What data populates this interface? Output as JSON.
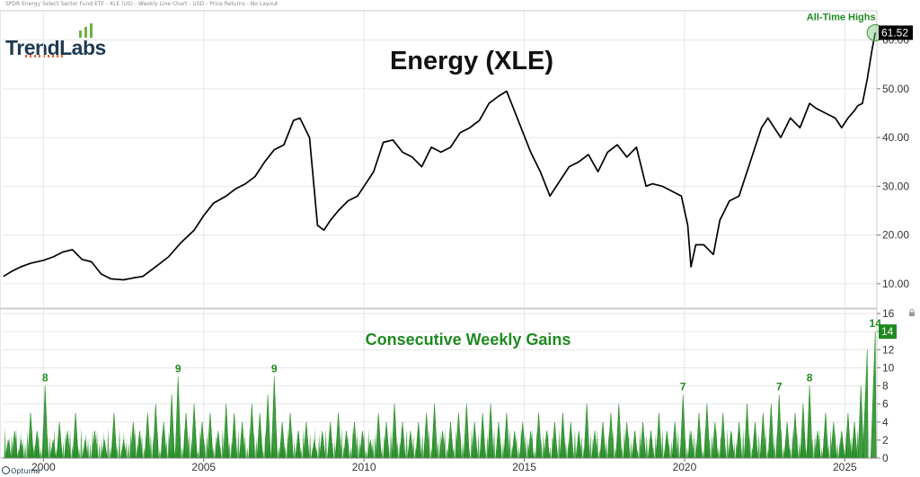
{
  "header": {
    "note": "SPDR Energy Select Sector Fund ETF - XLE (US) - Weekly Line Chart - USD - Price Returns - No Layout"
  },
  "logo": {
    "text": "TrendLabs",
    "icon": "bar-chart-icon",
    "accent_color": "#e8612c",
    "bar_color": "#6db33f"
  },
  "footer": {
    "brand": "Optuma"
  },
  "colors": {
    "price_line": "#000000",
    "gain_fill": "#1f8a1f",
    "gain_text": "#1f8a1f",
    "highlight_circle": "#7ec87e",
    "grid": "#e6e6e6"
  },
  "chart_data": [
    {
      "type": "line",
      "title": "Energy (XLE)",
      "xlabel": "",
      "ylabel": "",
      "xlim": [
        1998.7,
        2026.0
      ],
      "ylim": [
        5,
        66
      ],
      "x_ticks": [
        "2000",
        "2005",
        "2010",
        "2015",
        "2020",
        "2025"
      ],
      "x_tick_values": [
        2000,
        2005,
        2010,
        2015,
        2020,
        2025
      ],
      "y_ticks": [
        "10.00",
        "20.00",
        "30.00",
        "40.00",
        "50.00",
        "60.00"
      ],
      "y_tick_values": [
        10,
        20,
        30,
        40,
        50,
        60
      ],
      "grid": true,
      "series": [
        {
          "name": "",
          "x": [
            1998.75,
            1999.0,
            1999.3,
            1999.6,
            2000.0,
            2000.3,
            2000.6,
            2000.9,
            2001.2,
            2001.5,
            2001.8,
            2002.1,
            2002.5,
            2002.8,
            2003.1,
            2003.5,
            2003.9,
            2004.3,
            2004.7,
            2005.0,
            2005.3,
            2005.7,
            2006.0,
            2006.3,
            2006.6,
            2006.9,
            2007.2,
            2007.5,
            2007.8,
            2008.0,
            2008.3,
            2008.55,
            2008.75,
            2008.95,
            2009.2,
            2009.5,
            2009.8,
            2010.0,
            2010.3,
            2010.6,
            2010.9,
            2011.2,
            2011.5,
            2011.8,
            2012.1,
            2012.4,
            2012.7,
            2013.0,
            2013.3,
            2013.6,
            2013.9,
            2014.2,
            2014.45,
            2014.6,
            2014.9,
            2015.2,
            2015.5,
            2015.8,
            2016.1,
            2016.4,
            2016.7,
            2017.0,
            2017.3,
            2017.6,
            2017.9,
            2018.2,
            2018.5,
            2018.8,
            2019.0,
            2019.3,
            2019.6,
            2019.9,
            2020.1,
            2020.2,
            2020.35,
            2020.6,
            2020.9,
            2021.1,
            2021.4,
            2021.7,
            2022.0,
            2022.2,
            2022.4,
            2022.6,
            2022.8,
            2023.0,
            2023.3,
            2023.6,
            2023.9,
            2024.1,
            2024.4,
            2024.7,
            2024.9,
            2025.1,
            2025.3,
            2025.4,
            2025.55,
            2025.7,
            2025.85,
            2025.95
          ],
          "y": [
            11.5,
            12.5,
            13.5,
            14.2,
            14.8,
            15.5,
            16.5,
            17.0,
            15.0,
            14.5,
            12.0,
            11.0,
            10.8,
            11.2,
            11.5,
            13.5,
            15.5,
            18.5,
            21.0,
            24.0,
            26.5,
            28.0,
            29.5,
            30.5,
            32.0,
            35.0,
            37.5,
            38.5,
            43.5,
            44.0,
            40.0,
            22.0,
            21.0,
            23.0,
            25.0,
            27.0,
            28.0,
            30.0,
            33.0,
            39.0,
            39.5,
            37.0,
            36.0,
            34.0,
            38.0,
            37.0,
            38.0,
            41.0,
            42.0,
            43.5,
            47.0,
            48.5,
            49.5,
            47.0,
            42.0,
            37.0,
            33.0,
            28.0,
            31.0,
            34.0,
            35.0,
            36.5,
            33.0,
            37.0,
            38.5,
            36.0,
            38.0,
            30.0,
            30.5,
            30.0,
            29.0,
            28.0,
            22.0,
            13.5,
            18.0,
            18.0,
            16.0,
            23.0,
            27.0,
            28.0,
            34.0,
            38.0,
            42.0,
            44.0,
            42.0,
            40.0,
            44.0,
            42.0,
            47.0,
            46.0,
            45.0,
            44.0,
            42.0,
            44.0,
            45.5,
            46.5,
            47.0,
            52.0,
            58.0,
            61.5
          ]
        }
      ],
      "annotations": [
        {
          "text": "All-Time Highs",
          "x": 2025.95,
          "y": 61.52
        }
      ],
      "last_value_label": "61.52"
    },
    {
      "type": "area",
      "title": "Consecutive Weekly Gains",
      "xlabel": "",
      "ylabel": "",
      "xlim": [
        1998.7,
        2026.0
      ],
      "ylim": [
        0,
        16
      ],
      "y_ticks": [
        "0",
        "2",
        "4",
        "6",
        "8",
        "10",
        "12",
        "14",
        "16"
      ],
      "y_tick_values": [
        0,
        2,
        4,
        6,
        8,
        10,
        12,
        14,
        16
      ],
      "grid": true,
      "series": [
        {
          "name": "",
          "peaks": [
            [
              1998.9,
              2
            ],
            [
              1999.1,
              3
            ],
            [
              1999.3,
              2
            ],
            [
              1999.6,
              5
            ],
            [
              1999.8,
              3
            ],
            [
              2000.05,
              8
            ],
            [
              2000.3,
              2
            ],
            [
              2000.5,
              4
            ],
            [
              2000.75,
              3
            ],
            [
              2001.0,
              5
            ],
            [
              2001.3,
              2
            ],
            [
              2001.6,
              3
            ],
            [
              2001.9,
              2
            ],
            [
              2002.2,
              5
            ],
            [
              2002.5,
              2
            ],
            [
              2002.8,
              4
            ],
            [
              2003.0,
              3
            ],
            [
              2003.25,
              5
            ],
            [
              2003.5,
              6
            ],
            [
              2003.75,
              4
            ],
            [
              2004.0,
              7
            ],
            [
              2004.2,
              9
            ],
            [
              2004.45,
              5
            ],
            [
              2004.7,
              6
            ],
            [
              2004.95,
              4
            ],
            [
              2005.2,
              5
            ],
            [
              2005.45,
              3
            ],
            [
              2005.7,
              6
            ],
            [
              2005.95,
              5
            ],
            [
              2006.2,
              4
            ],
            [
              2006.5,
              6
            ],
            [
              2006.75,
              5
            ],
            [
              2007.0,
              7
            ],
            [
              2007.2,
              9
            ],
            [
              2007.45,
              4
            ],
            [
              2007.7,
              5
            ],
            [
              2007.95,
              3
            ],
            [
              2008.2,
              4
            ],
            [
              2008.45,
              2
            ],
            [
              2008.7,
              3
            ],
            [
              2008.95,
              4
            ],
            [
              2009.2,
              5
            ],
            [
              2009.45,
              3
            ],
            [
              2009.7,
              4
            ],
            [
              2009.95,
              3
            ],
            [
              2010.2,
              2
            ],
            [
              2010.45,
              5
            ],
            [
              2010.7,
              4
            ],
            [
              2010.95,
              6
            ],
            [
              2011.2,
              4
            ],
            [
              2011.45,
              3
            ],
            [
              2011.7,
              4
            ],
            [
              2011.95,
              5
            ],
            [
              2012.2,
              6
            ],
            [
              2012.45,
              3
            ],
            [
              2012.7,
              4
            ],
            [
              2012.95,
              5
            ],
            [
              2013.2,
              6
            ],
            [
              2013.45,
              4
            ],
            [
              2013.7,
              5
            ],
            [
              2013.95,
              6
            ],
            [
              2014.2,
              4
            ],
            [
              2014.45,
              5
            ],
            [
              2014.7,
              3
            ],
            [
              2014.95,
              4
            ],
            [
              2015.2,
              3
            ],
            [
              2015.45,
              5
            ],
            [
              2015.7,
              3
            ],
            [
              2015.95,
              4
            ],
            [
              2016.2,
              5
            ],
            [
              2016.45,
              4
            ],
            [
              2016.7,
              3
            ],
            [
              2016.95,
              6
            ],
            [
              2017.2,
              3
            ],
            [
              2017.45,
              4
            ],
            [
              2017.7,
              5
            ],
            [
              2017.95,
              6
            ],
            [
              2018.2,
              4
            ],
            [
              2018.45,
              3
            ],
            [
              2018.7,
              4
            ],
            [
              2018.95,
              3
            ],
            [
              2019.2,
              5
            ],
            [
              2019.45,
              3
            ],
            [
              2019.7,
              4
            ],
            [
              2019.95,
              7
            ],
            [
              2020.2,
              3
            ],
            [
              2020.45,
              5
            ],
            [
              2020.7,
              6
            ],
            [
              2020.95,
              4
            ],
            [
              2021.2,
              5
            ],
            [
              2021.45,
              3
            ],
            [
              2021.7,
              4
            ],
            [
              2021.95,
              6
            ],
            [
              2022.2,
              4
            ],
            [
              2022.45,
              5
            ],
            [
              2022.7,
              6
            ],
            [
              2022.95,
              7
            ],
            [
              2023.2,
              4
            ],
            [
              2023.45,
              5
            ],
            [
              2023.7,
              6
            ],
            [
              2023.9,
              8
            ],
            [
              2024.15,
              3
            ],
            [
              2024.4,
              5
            ],
            [
              2024.65,
              4
            ],
            [
              2024.9,
              3
            ],
            [
              2025.1,
              5
            ],
            [
              2025.3,
              4
            ],
            [
              2025.5,
              8
            ],
            [
              2025.7,
              12
            ],
            [
              2025.95,
              14
            ]
          ]
        }
      ],
      "annotations": [
        {
          "text": "8",
          "x": 2000.05,
          "y": 8
        },
        {
          "text": "9",
          "x": 2004.2,
          "y": 9
        },
        {
          "text": "9",
          "x": 2007.2,
          "y": 9
        },
        {
          "text": "7",
          "x": 2019.95,
          "y": 7
        },
        {
          "text": "7",
          "x": 2022.95,
          "y": 7
        },
        {
          "text": "8",
          "x": 2023.9,
          "y": 8
        },
        {
          "text": "14",
          "x": 2025.95,
          "y": 14
        }
      ],
      "last_value_label": "14"
    }
  ]
}
